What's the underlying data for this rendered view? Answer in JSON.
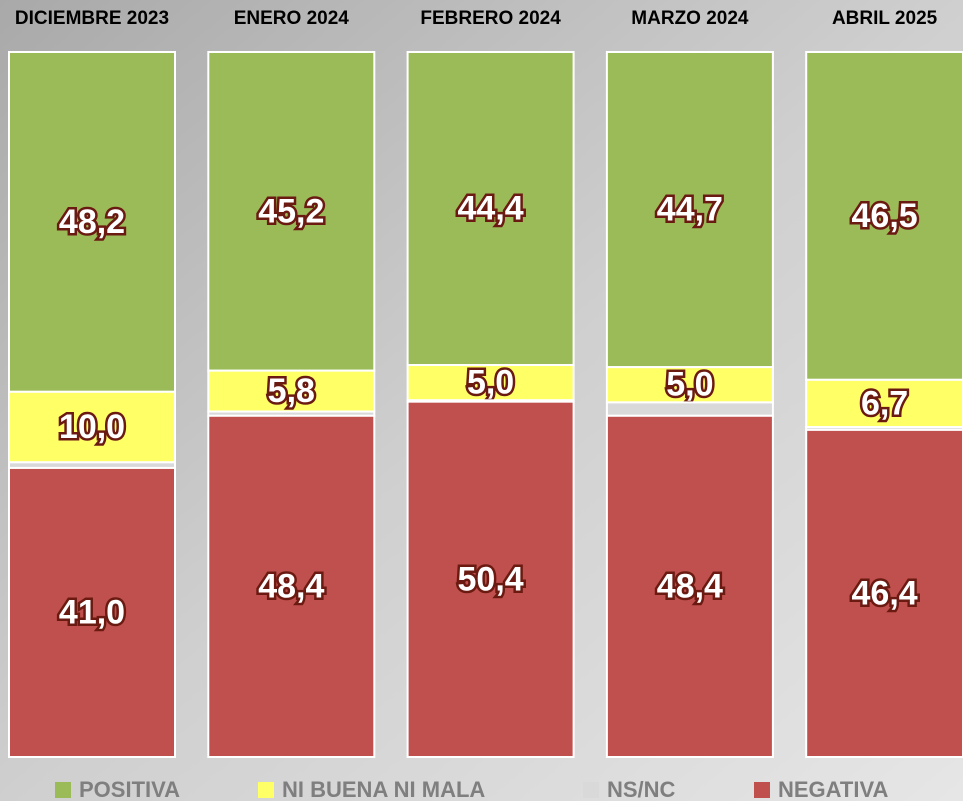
{
  "chart_data": {
    "type": "stacked_bar",
    "categories": [
      "DICIEMBRE 2023",
      "ENERO 2024",
      "FEBRERO 2024",
      "MARZO 2024",
      "ABRIL 2025"
    ],
    "series": [
      {
        "name": "POSITIVA",
        "color": "#9bbb59",
        "values": [
          48.2,
          45.2,
          44.4,
          44.7,
          46.5
        ],
        "value_labels": [
          "48,2",
          "45,2",
          "44,4",
          "44,7",
          "46,5"
        ]
      },
      {
        "name": "NI BUENA NI MALA",
        "color": "#ffff66",
        "values": [
          10.0,
          5.8,
          5.0,
          5.0,
          6.7
        ],
        "value_labels": [
          "10,0",
          "5,8",
          "5,0",
          "5,0",
          "6,7"
        ]
      },
      {
        "name": "NS/NC",
        "color": "#d9d9d9",
        "values": [
          0.8,
          0.6,
          0.2,
          1.9,
          0.4
        ]
      },
      {
        "name": "NEGATIVA",
        "color": "#c0504d",
        "values": [
          41.0,
          48.4,
          50.4,
          48.4,
          46.4
        ],
        "value_labels": [
          "41,0",
          "48,4",
          "50,4",
          "48,4",
          "46,4"
        ]
      }
    ],
    "ylim": [
      0,
      100
    ]
  }
}
